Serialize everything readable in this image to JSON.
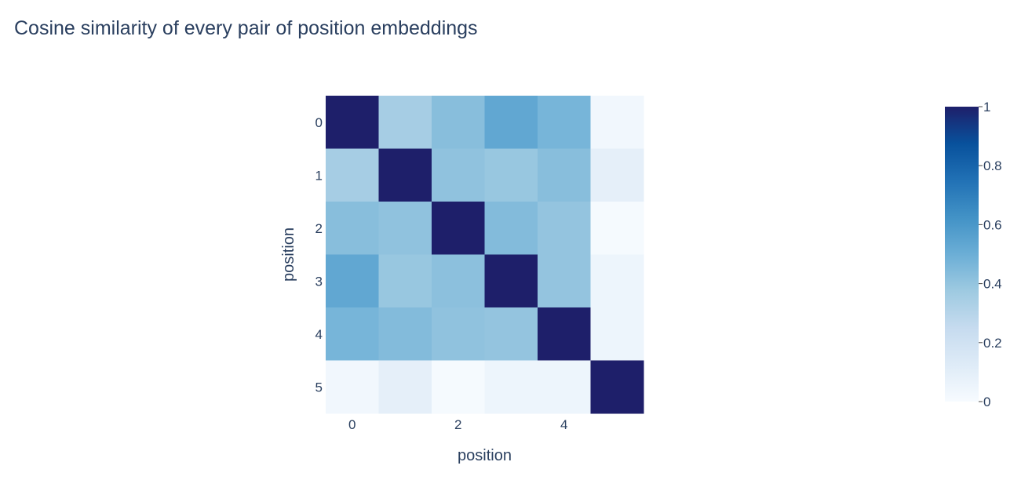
{
  "chart_data": {
    "type": "heatmap",
    "title": "Cosine similarity of every pair of position embeddings",
    "xlabel": "position",
    "ylabel": "position",
    "x": [
      0,
      1,
      2,
      3,
      4,
      5
    ],
    "y": [
      0,
      1,
      2,
      3,
      4,
      5
    ],
    "x_tick_labels": [
      "0",
      "2",
      "4"
    ],
    "y_tick_labels": [
      "0",
      "1",
      "2",
      "3",
      "4",
      "5"
    ],
    "z": [
      [
        1.0,
        0.35,
        0.43,
        0.53,
        0.47,
        0.03
      ],
      [
        0.35,
        1.0,
        0.41,
        0.39,
        0.43,
        0.09
      ],
      [
        0.43,
        0.41,
        1.0,
        0.44,
        0.4,
        0.01
      ],
      [
        0.53,
        0.39,
        0.42,
        1.0,
        0.4,
        0.05
      ],
      [
        0.47,
        0.44,
        0.41,
        0.4,
        1.0,
        0.05
      ],
      [
        0.03,
        0.09,
        0.01,
        0.05,
        0.05,
        1.0
      ]
    ],
    "zlim": [
      0,
      1
    ],
    "colorscale": "Blues",
    "colorbar": {
      "ticks": [
        0,
        0.2,
        0.4,
        0.6,
        0.8,
        1
      ],
      "tick_labels": [
        "0",
        "0.2",
        "0.4",
        "0.6",
        "0.8",
        "1"
      ]
    },
    "colors": {
      "axis_text": "#2a3f5f",
      "scale": [
        "#f7fbff",
        "#deebf7",
        "#c6dbef",
        "#9ecae1",
        "#6baed6",
        "#4292c6",
        "#2171b5",
        "#08519c",
        "#1e1f6a"
      ]
    }
  }
}
